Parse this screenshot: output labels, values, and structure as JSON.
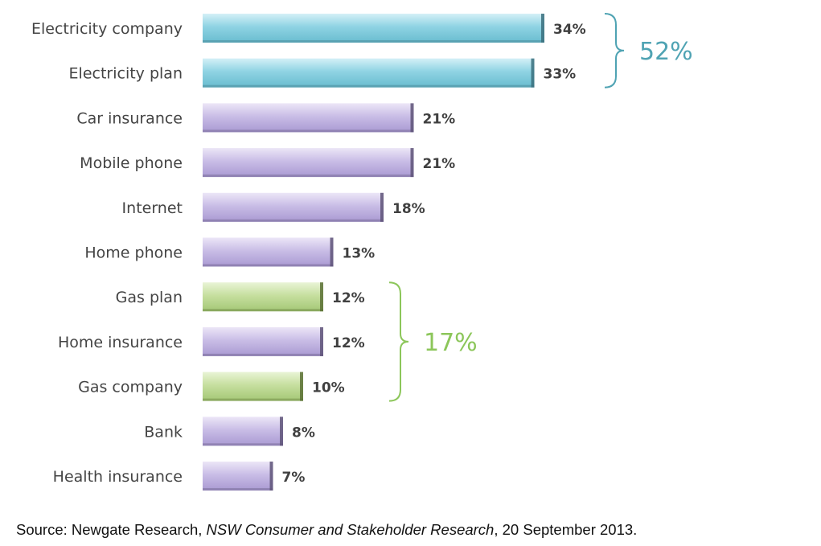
{
  "chart_data": {
    "type": "bar",
    "orientation": "horizontal",
    "categories": [
      "Electricity company",
      "Electricity plan",
      "Car insurance",
      "Mobile phone",
      "Internet",
      "Home phone",
      "Gas plan",
      "Home insurance",
      "Gas company",
      "Bank",
      "Health insurance"
    ],
    "values": [
      34,
      33,
      21,
      21,
      18,
      13,
      12,
      12,
      10,
      8,
      7
    ],
    "value_labels": [
      "34%",
      "33%",
      "21%",
      "21%",
      "18%",
      "13%",
      "12%",
      "12%",
      "10%",
      "8%",
      "7%"
    ],
    "bar_groups": [
      "electricity",
      "electricity",
      "other",
      "other",
      "other",
      "other",
      "gas",
      "other",
      "gas",
      "other",
      "other"
    ],
    "title": "",
    "xlabel": "",
    "ylabel": "",
    "grid": false,
    "colors": {
      "electricity": "#8fd3e3",
      "other": "#c9bde6",
      "gas": "#c6df9f",
      "electricity_brace": "#4fa3b3",
      "gas_brace": "#8cc65a"
    },
    "annotations": [
      {
        "label": "52%",
        "spans": [
          "Electricity company",
          "Electricity plan"
        ],
        "color": "#4fa3b3"
      },
      {
        "label": "17%",
        "spans": [
          "Gas plan",
          "Gas company"
        ],
        "color": "#8cc65a"
      }
    ]
  },
  "source": {
    "prefix": "Source: Newgate Research, ",
    "title": "NSW Consumer and Stakeholder Research",
    "suffix": ", 20 September 2013."
  }
}
